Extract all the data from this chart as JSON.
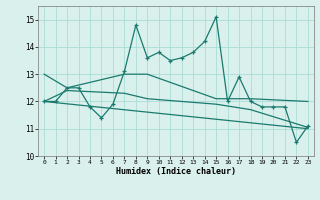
{
  "xlabel": "Humidex (Indice chaleur)",
  "x_values": [
    0,
    1,
    2,
    3,
    4,
    5,
    6,
    7,
    8,
    9,
    10,
    11,
    12,
    13,
    14,
    15,
    16,
    17,
    18,
    19,
    20,
    21,
    22,
    23
  ],
  "y_main": [
    12.0,
    12.0,
    12.5,
    12.5,
    11.8,
    11.4,
    11.9,
    13.1,
    14.8,
    13.6,
    13.8,
    13.5,
    13.6,
    13.8,
    14.2,
    15.1,
    12.0,
    12.9,
    12.0,
    11.8,
    11.8,
    11.8,
    10.5,
    11.1
  ],
  "ylim": [
    10,
    15.5
  ],
  "xlim": [
    -0.5,
    23.5
  ],
  "yticks": [
    10,
    11,
    12,
    13,
    14,
    15
  ],
  "xticks": [
    0,
    1,
    2,
    3,
    4,
    5,
    6,
    7,
    8,
    9,
    10,
    11,
    12,
    13,
    14,
    15,
    16,
    17,
    18,
    19,
    20,
    21,
    22,
    23
  ],
  "line_color": "#1a7a6e",
  "bg_color": "#daf0ec",
  "grid_color": "#aaddd8",
  "trend_x": [
    0,
    23
  ],
  "trend_y": [
    12.0,
    11.0
  ],
  "env_upper_x": [
    0,
    2,
    7,
    9,
    15,
    18,
    23
  ],
  "env_upper_y": [
    13.0,
    12.5,
    13.0,
    13.0,
    12.1,
    12.1,
    12.0
  ],
  "env_lower_x": [
    0,
    2,
    7,
    9,
    15,
    18,
    23
  ],
  "env_lower_y": [
    12.0,
    12.4,
    12.3,
    12.1,
    11.9,
    11.7,
    11.05
  ]
}
